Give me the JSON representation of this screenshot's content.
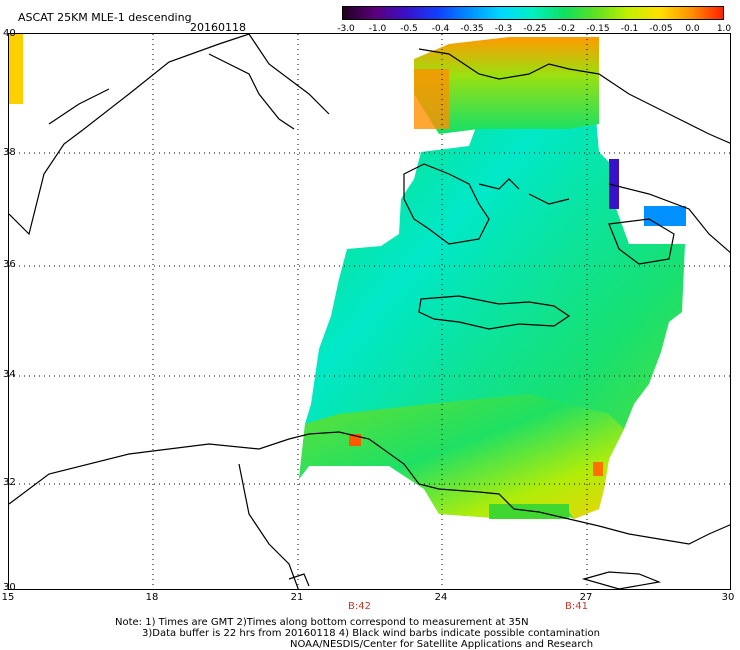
{
  "header": {
    "title": "ASCAT 25KM MLE-1 descending",
    "date": "20160118"
  },
  "colorbar": {
    "labels": [
      "-3.0",
      "-1.0",
      "-0.5",
      "-0.4",
      "-0.35",
      "-0.3",
      "-0.25",
      "-0.2",
      "-0.15",
      "-0.1",
      "-0.05",
      "0.0",
      "1.0"
    ],
    "colors": [
      "#200020",
      "#5a007a",
      "#3a10c8",
      "#1040ff",
      "#0090ff",
      "#00d8ff",
      "#00f0c0",
      "#10e060",
      "#60e020",
      "#c0f000",
      "#ffe000",
      "#ff9000",
      "#ff2000"
    ]
  },
  "axes": {
    "x_ticks": [
      "15",
      "18",
      "21",
      "24",
      "27",
      "30"
    ],
    "y_ticks": [
      "40",
      "38",
      "36",
      "34",
      "32",
      "30"
    ]
  },
  "orbits": [
    "B:42",
    "B:41"
  ],
  "notes": {
    "line1": "Note: 1) Times are GMT 2)Times along bottom correspond to measurement at 35N",
    "line2": "3)Data buffer is 22 hrs from 20160118 4) Black wind barbs indicate possible contamination",
    "line3": "NOAA/NESDIS/Center for Satellite Applications and Research"
  }
}
